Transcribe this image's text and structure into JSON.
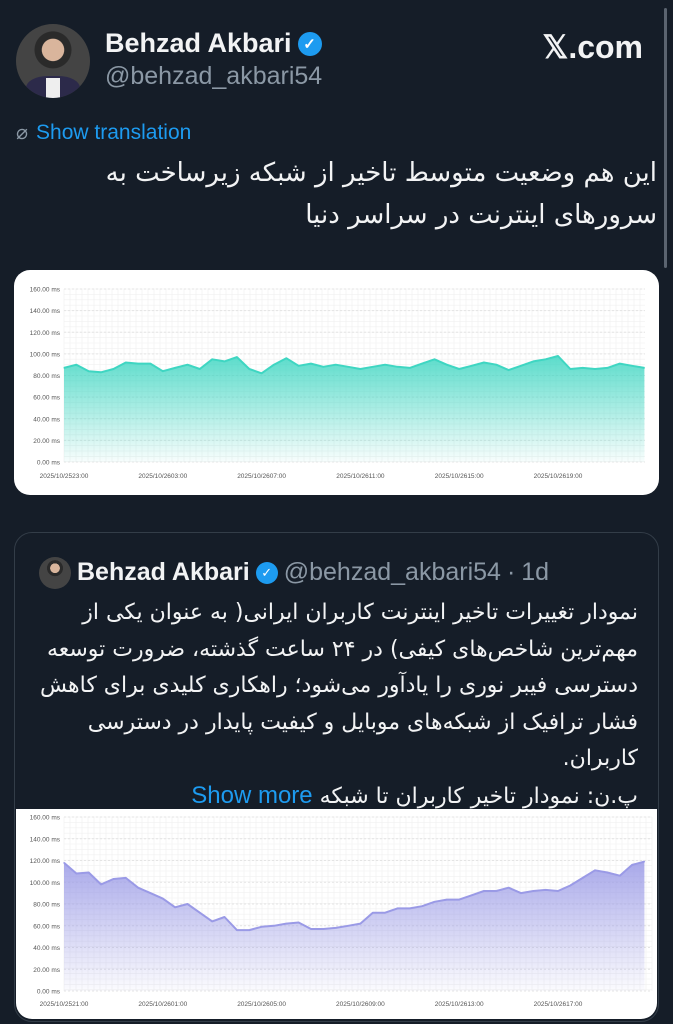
{
  "header": {
    "name": "Behzad Akbari",
    "handle": "@behzad_akbari54",
    "brand": "𝕏.com",
    "show_translation": "Show translation",
    "icons": {
      "verified": "verified-badge-icon",
      "translate": "translate-icon"
    }
  },
  "tweet": {
    "text": "این هم وضعیت متوسط تاخیر از شبکه زیرساخت به سرورهای اینترنت در سراسر دنیا"
  },
  "quote": {
    "name": "Behzad Akbari",
    "handle": "@behzad_akbari54",
    "separator": "·",
    "time": "1d",
    "text": "نمودار تغییرات تاخیر اینترنت کاربران ایرانی( به عنوان یکی از مهم‌ترین شاخص‌های کیفی)  در ۲۴ ساعت گذشته، ضرورت توسعه دسترسی فیبر نوری را یادآور می‌شود؛ راهکاری کلیدی برای کاهش فشار ترافیک از شبکه‌های موبایل و کیفیت پایدار در دسترسی کاربران.",
    "text_last": "پ.ن: نمودار تاخیر کاربران تا شبکه",
    "show_more": "Show more"
  },
  "chart_data": [
    {
      "type": "area",
      "color": "#3fd6c2",
      "ylim": [
        0,
        160
      ],
      "yticks": [
        "0.00 ms",
        "20.00 ms",
        "40.00 ms",
        "60.00 ms",
        "80.00 ms",
        "100.00 ms",
        "120.00 ms",
        "140.00 ms",
        "160.00 ms"
      ],
      "xticks": [
        "2025/10/2523:00",
        "2025/10/2603:00",
        "2025/10/2607:00",
        "2025/10/2611:00",
        "2025/10/2615:00",
        "2025/10/2619:00"
      ],
      "grid": true,
      "start": "2025-10-25T23:00",
      "step_minutes": 30,
      "values": [
        87,
        90,
        84,
        83,
        86,
        92,
        91,
        91,
        84,
        87,
        90,
        86,
        95,
        93,
        97,
        86,
        82,
        90,
        96,
        89,
        91,
        88,
        90,
        88,
        86,
        88,
        90,
        88,
        87,
        91,
        95,
        90,
        86,
        89,
        92,
        90,
        85,
        89,
        93,
        95,
        98,
        86,
        87,
        86,
        87,
        91,
        89,
        87
      ]
    },
    {
      "type": "area",
      "color": "#9a9ae6",
      "ylim": [
        0,
        160
      ],
      "yticks": [
        "0.00 ms",
        "20.00 ms",
        "40.00 ms",
        "60.00 ms",
        "80.00 ms",
        "100.00 ms",
        "120.00 ms",
        "140.00 ms",
        "160.00 ms"
      ],
      "xticks": [
        "2025/10/2521:00",
        "2025/10/2601:00",
        "2025/10/2605:00",
        "2025/10/2609:00",
        "2025/10/2613:00",
        "2025/10/2617:00"
      ],
      "grid": true,
      "start": "2025-10-25T21:00",
      "step_minutes": 30,
      "values": [
        118,
        108,
        109,
        98,
        103,
        104,
        95,
        90,
        85,
        77,
        80,
        72,
        64,
        68,
        56,
        56,
        59,
        60,
        62,
        63,
        57,
        57,
        58,
        60,
        62,
        72,
        72,
        76,
        76,
        78,
        82,
        84,
        84,
        88,
        92,
        92,
        95,
        90,
        92,
        93,
        92,
        97,
        104,
        111,
        109,
        106,
        116,
        119
      ]
    }
  ]
}
